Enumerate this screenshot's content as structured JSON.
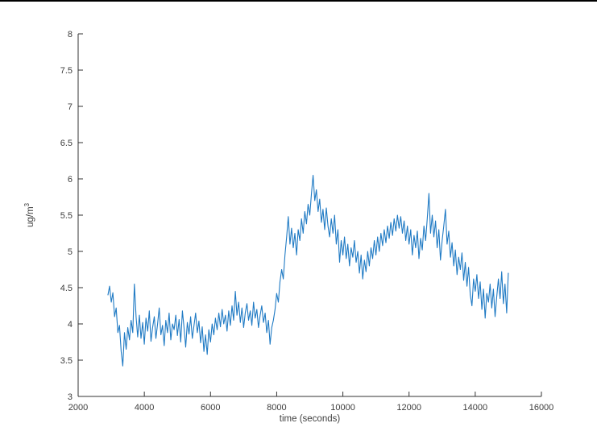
{
  "page": {
    "background": "#ffffff",
    "top_border_color": "#000000"
  },
  "chart_data": {
    "type": "line",
    "title": "",
    "xlabel": "time (seconds)",
    "ylabel_base": "ug/m",
    "ylabel_sup": "3",
    "xlim": [
      2000,
      16000
    ],
    "ylim": [
      3,
      8
    ],
    "xticks": [
      2000,
      4000,
      6000,
      8000,
      10000,
      12000,
      14000,
      16000
    ],
    "xtick_labels": [
      "2000",
      "4000",
      "6000",
      "8000",
      "10000",
      "12000",
      "14000",
      "16000"
    ],
    "yticks": [
      3,
      3.5,
      4,
      4.5,
      5,
      5.5,
      6,
      6.5,
      7,
      7.5,
      8
    ],
    "ytick_labels": [
      "3",
      "3.5",
      "4",
      "4.5",
      "5",
      "5.5",
      "6",
      "6.5",
      "7",
      "7.5",
      "8"
    ],
    "grid": false,
    "legend_position": "none",
    "box": false,
    "line_color": "#1f7ac4",
    "axis_color": "#333333",
    "tick_label_color": "#3d3d3d",
    "notable_points": {
      "start": {
        "t": 2900,
        "value": 4.4
      },
      "min": {
        "t": 3350,
        "value": 3.42
      },
      "max": {
        "t": 9100,
        "value": 6.05
      },
      "secondary_peak": {
        "t": 12600,
        "value": 5.8
      },
      "end": {
        "t": 15000,
        "value": 4.7
      }
    },
    "series": [
      {
        "name": "concentration",
        "t_start": 2900,
        "t_step": 50,
        "values": [
          4.4,
          4.52,
          4.3,
          4.43,
          4.1,
          4.22,
          3.88,
          3.98,
          3.62,
          3.42,
          3.88,
          3.65,
          3.95,
          3.78,
          4.05,
          3.88,
          4.55,
          4.1,
          3.82,
          4.12,
          3.8,
          4.02,
          3.72,
          4.08,
          3.9,
          4.18,
          3.76,
          3.95,
          4.1,
          3.8,
          4.0,
          4.22,
          3.85,
          3.98,
          3.7,
          4.05,
          3.88,
          4.15,
          3.78,
          4.0,
          3.92,
          4.12,
          3.84,
          4.06,
          3.75,
          4.18,
          3.95,
          3.68,
          4.02,
          3.86,
          4.1,
          3.8,
          3.98,
          4.15,
          3.88,
          4.04,
          3.74,
          3.96,
          3.62,
          3.85,
          3.58,
          3.92,
          3.75,
          4.0,
          3.85,
          4.08,
          3.92,
          4.15,
          3.96,
          4.2,
          4.0,
          4.12,
          3.9,
          4.18,
          3.98,
          4.25,
          4.05,
          4.45,
          4.12,
          4.3,
          4.02,
          4.22,
          3.95,
          4.15,
          4.28,
          4.05,
          4.18,
          3.98,
          4.3,
          4.08,
          4.2,
          3.95,
          4.12,
          4.25,
          4.02,
          4.15,
          3.88,
          4.05,
          3.72,
          3.95,
          4.05,
          4.2,
          4.42,
          4.3,
          4.58,
          4.75,
          4.62,
          4.95,
          5.2,
          5.48,
          5.1,
          5.32,
          5.05,
          5.25,
          4.95,
          5.3,
          5.15,
          5.45,
          5.25,
          5.55,
          5.38,
          5.65,
          5.5,
          5.8,
          6.05,
          5.7,
          5.85,
          5.55,
          5.72,
          5.4,
          5.58,
          5.3,
          5.6,
          5.35,
          5.2,
          5.45,
          5.25,
          5.5,
          5.1,
          5.3,
          4.85,
          5.15,
          4.95,
          5.2,
          4.9,
          5.1,
          4.8,
          5.05,
          4.92,
          5.15,
          4.85,
          5.0,
          4.7,
          4.95,
          4.62,
          4.88,
          4.72,
          5.0,
          4.8,
          5.05,
          4.9,
          5.15,
          4.95,
          5.2,
          5.0,
          5.25,
          5.08,
          5.3,
          5.12,
          5.35,
          5.18,
          5.4,
          5.22,
          5.45,
          5.28,
          5.5,
          5.32,
          5.48,
          5.25,
          5.42,
          5.15,
          5.35,
          5.1,
          5.3,
          4.95,
          5.22,
          5.05,
          5.28,
          4.9,
          5.18,
          5.02,
          5.35,
          5.15,
          5.45,
          5.8,
          5.25,
          5.5,
          5.2,
          5.42,
          5.05,
          5.3,
          4.88,
          5.15,
          5.35,
          5.58,
          5.1,
          5.28,
          4.92,
          5.12,
          4.8,
          5.02,
          4.68,
          4.92,
          4.75,
          4.98,
          4.6,
          4.85,
          4.52,
          4.78,
          4.4,
          4.25,
          4.62,
          4.45,
          4.68,
          4.35,
          4.58,
          4.2,
          4.48,
          4.08,
          4.42,
          4.3,
          4.55,
          4.22,
          4.48,
          4.1,
          4.38,
          4.62,
          4.35,
          4.72,
          4.28,
          4.55,
          4.15,
          4.7
        ]
      }
    ]
  }
}
